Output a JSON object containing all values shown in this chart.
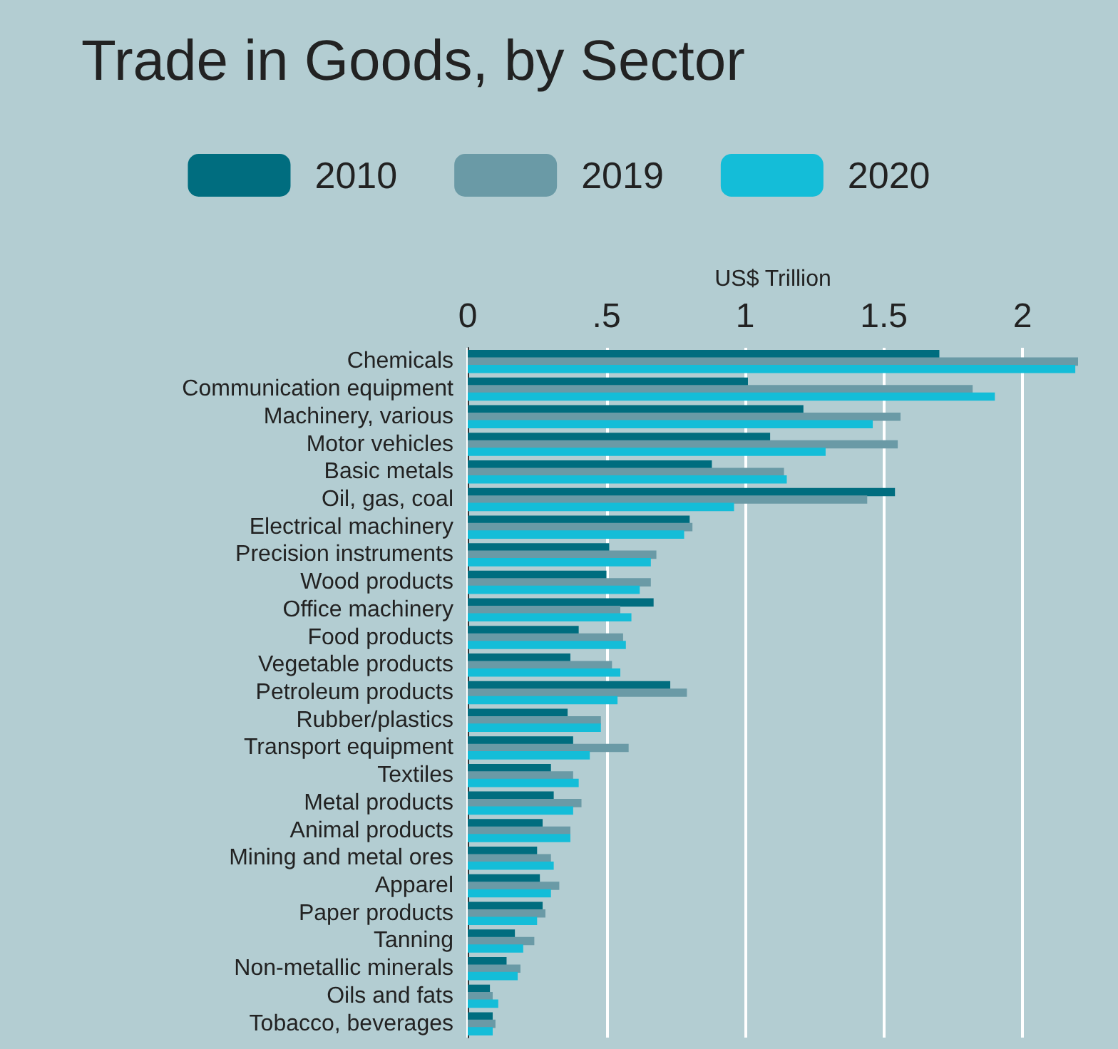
{
  "chart_data": {
    "type": "bar",
    "orientation": "horizontal",
    "title": "Trade in Goods, by Sector",
    "xlabel": "US$ Trillion",
    "categories": [
      "Chemicals",
      "Communication equipment",
      "Machinery, various",
      "Motor vehicles",
      "Basic metals",
      "Oil, gas, coal",
      "Electrical machinery",
      "Precision instruments",
      "Wood products",
      "Office machinery",
      "Food products",
      "Vegetable products",
      "Petroleum products",
      "Rubber/plastics",
      "Transport equipment",
      "Textiles",
      "Metal products",
      "Animal products",
      "Mining and metal ores",
      "Apparel",
      "Paper products",
      "Tanning",
      "Non-metallic minerals",
      "Oils and fats",
      "Tobacco, beverages"
    ],
    "series": [
      {
        "name": "2010",
        "color": "#006d7f",
        "values": [
          1.7,
          1.01,
          1.21,
          1.09,
          0.88,
          1.54,
          0.8,
          0.51,
          0.5,
          0.67,
          0.4,
          0.37,
          0.73,
          0.36,
          0.38,
          0.3,
          0.31,
          0.27,
          0.25,
          0.26,
          0.27,
          0.17,
          0.14,
          0.08,
          0.09
        ]
      },
      {
        "name": "2019",
        "color": "#6a9aa6",
        "values": [
          2.2,
          1.82,
          1.56,
          1.55,
          1.14,
          1.44,
          0.81,
          0.68,
          0.66,
          0.55,
          0.56,
          0.52,
          0.79,
          0.48,
          0.58,
          0.38,
          0.41,
          0.37,
          0.3,
          0.33,
          0.28,
          0.24,
          0.19,
          0.09,
          0.1
        ]
      },
      {
        "name": "2020",
        "color": "#14bdd8",
        "values": [
          2.19,
          1.9,
          1.46,
          1.29,
          1.15,
          0.96,
          0.78,
          0.66,
          0.62,
          0.59,
          0.57,
          0.55,
          0.54,
          0.48,
          0.44,
          0.4,
          0.38,
          0.37,
          0.31,
          0.3,
          0.25,
          0.2,
          0.18,
          0.11,
          0.09
        ]
      }
    ],
    "xlim": [
      0,
      2.2
    ],
    "xticks": [
      0,
      {
        "value": 0.5,
        "label": ".5"
      },
      1,
      1.5,
      2
    ],
    "grid": "x",
    "legend": "top"
  }
}
